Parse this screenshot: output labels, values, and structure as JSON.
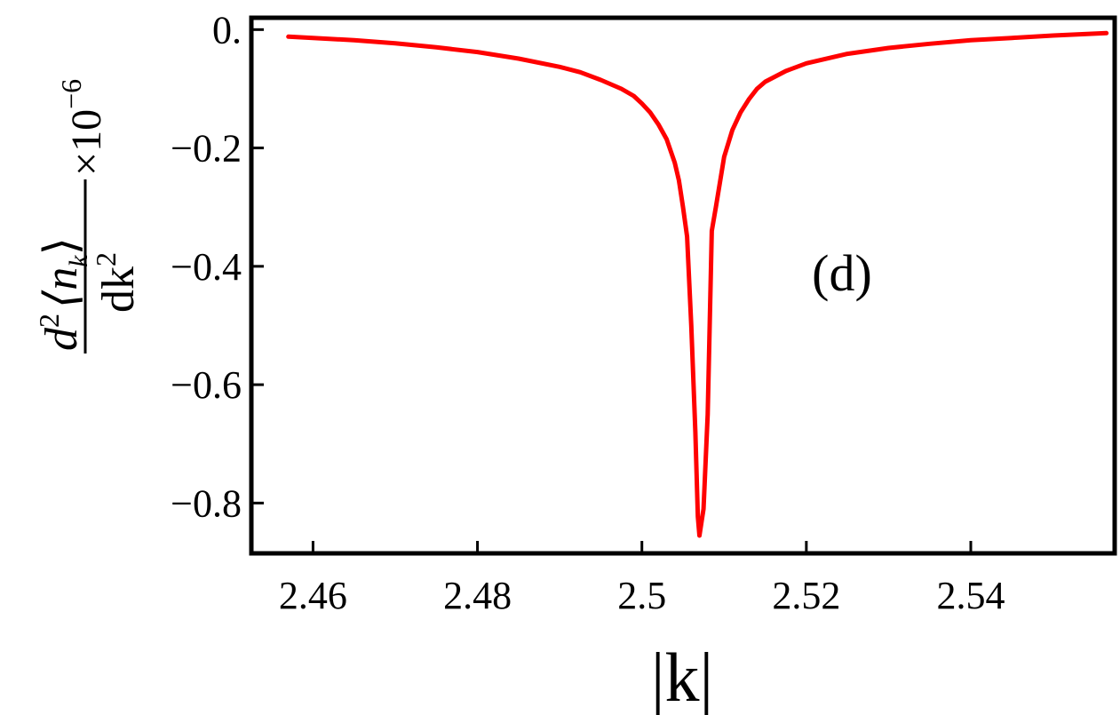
{
  "chart_data": {
    "type": "line",
    "title": "",
    "panel_label": "(d)",
    "xlabel": "|k|",
    "ylabel": {
      "numerator_d": "d",
      "numerator_sup": "2",
      "numerator_bracket": "⟨n",
      "numerator_sub": "k",
      "numerator_close": "⟩",
      "denominator": "dk",
      "denominator_sup": "2",
      "multiplier": "×10",
      "multiplier_exp": "−6"
    },
    "xlim": [
      2.4525,
      2.5575
    ],
    "ylim": [
      -0.885,
      0.02
    ],
    "xticks": [
      {
        "value": 2.46,
        "label": "2.46"
      },
      {
        "value": 2.48,
        "label": "2.48"
      },
      {
        "value": 2.5,
        "label": "2.5"
      },
      {
        "value": 2.52,
        "label": "2.52"
      },
      {
        "value": 2.54,
        "label": "2.54"
      }
    ],
    "yticks": [
      {
        "value": 0.0,
        "label": "0."
      },
      {
        "value": -0.2,
        "label": "−0.2"
      },
      {
        "value": -0.4,
        "label": "−0.4"
      },
      {
        "value": -0.6,
        "label": "−0.6"
      },
      {
        "value": -0.8,
        "label": "−0.8"
      }
    ],
    "grid": false,
    "series": [
      {
        "color": "#ff0000",
        "x": [
          2.457,
          2.46,
          2.465,
          2.47,
          2.475,
          2.48,
          2.485,
          2.49,
          2.4925,
          2.495,
          2.4975,
          2.499,
          2.5,
          2.501,
          2.502,
          2.503,
          2.504,
          2.5045,
          2.505,
          2.5055,
          2.506,
          2.5065,
          2.5068,
          2.507,
          2.5075,
          2.508,
          2.5085,
          2.509,
          2.51,
          2.511,
          2.512,
          2.513,
          2.514,
          2.515,
          2.5175,
          2.52,
          2.525,
          2.53,
          2.535,
          2.54,
          2.545,
          2.55,
          2.5565
        ],
        "y": [
          -0.012,
          -0.014,
          -0.018,
          -0.023,
          -0.03,
          -0.038,
          -0.049,
          -0.063,
          -0.072,
          -0.085,
          -0.1,
          -0.112,
          -0.125,
          -0.14,
          -0.16,
          -0.185,
          -0.225,
          -0.255,
          -0.3,
          -0.35,
          -0.5,
          -0.68,
          -0.823,
          -0.855,
          -0.81,
          -0.65,
          -0.34,
          -0.3,
          -0.215,
          -0.17,
          -0.14,
          -0.118,
          -0.1,
          -0.088,
          -0.07,
          -0.057,
          -0.041,
          -0.031,
          -0.024,
          -0.018,
          -0.014,
          -0.01,
          -0.006
        ]
      }
    ]
  }
}
